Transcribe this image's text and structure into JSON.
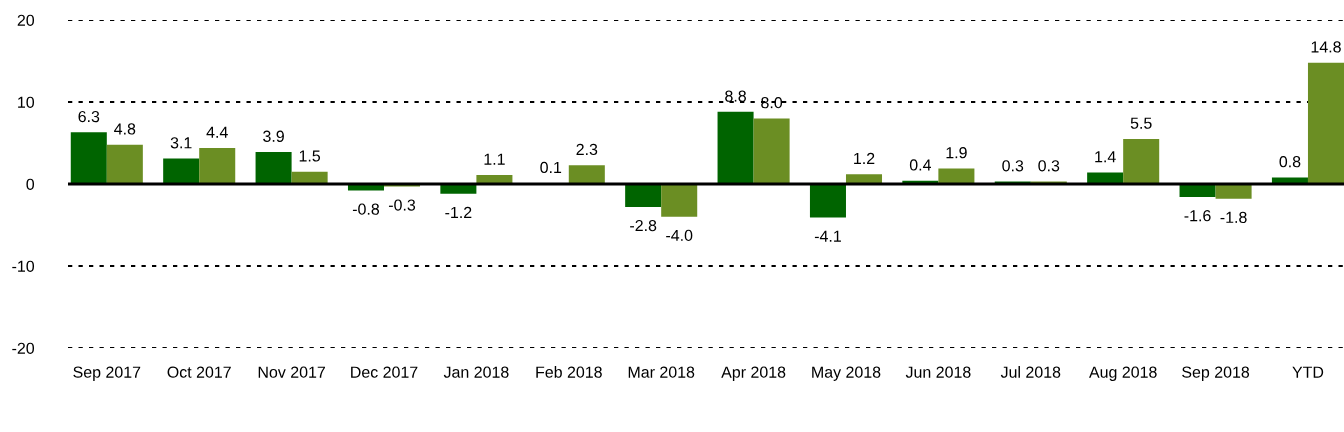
{
  "chart_data": {
    "type": "bar",
    "categories": [
      "Sep 2017",
      "Oct 2017",
      "Nov 2017",
      "Dec 2017",
      "Jan 2018",
      "Feb 2018",
      "Mar 2018",
      "Apr 2018",
      "May 2018",
      "Jun 2018",
      "Jul 2018",
      "Aug 2018",
      "Sep 2018",
      "YTD"
    ],
    "series": [
      {
        "color": "#006400",
        "values": [
          6.3,
          3.1,
          3.9,
          -0.8,
          -1.2,
          0.1,
          -2.8,
          8.8,
          -4.1,
          0.4,
          0.3,
          1.4,
          -1.6,
          0.8
        ],
        "value_labels": [
          "6.3",
          "3.1",
          "3.9",
          "-0.8",
          "-1.2",
          "0.1",
          "-2.8",
          "8.8",
          "-4.1",
          "0.4",
          "0.3",
          "1.4",
          "-1.6",
          "0.8"
        ]
      },
      {
        "color": "#6b8e23",
        "values": [
          4.8,
          4.4,
          1.5,
          -0.3,
          1.1,
          2.3,
          -4.0,
          8.0,
          1.2,
          1.9,
          0.3,
          5.5,
          -1.8,
          14.8
        ],
        "value_labels": [
          "4.8",
          "4.4",
          "1.5",
          "-0.3",
          "1.1",
          "2.3",
          "-4.0",
          "8.0",
          "1.2",
          "1.9",
          "0.3",
          "5.5",
          "-1.8",
          "14.8"
        ]
      }
    ],
    "ylim": [
      -20,
      20
    ],
    "yticks": [
      -20,
      -10,
      0,
      10,
      20
    ],
    "grid": "y",
    "ref_lines": [
      {
        "axis": "y",
        "value": 0,
        "color": "#000000",
        "line_style": "solid"
      }
    ]
  }
}
